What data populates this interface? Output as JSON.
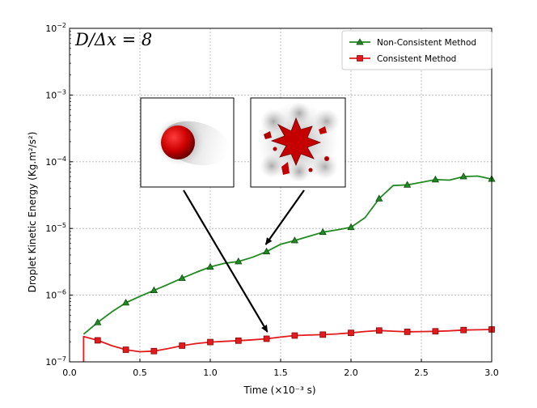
{
  "chart_data": {
    "type": "line",
    "annotation": "D/Δx = 8",
    "xlabel": "Time (×10⁻³ s)",
    "ylabel": "Droplet Kinetic Energy (Kg.m²/s²)",
    "xlim": [
      0.0,
      3.0
    ],
    "ylim": [
      1e-07,
      0.01
    ],
    "yscale": "log",
    "grid": true,
    "legend_position": "top-right",
    "x_ticks": [
      "0.0",
      "0.5",
      "1.0",
      "1.5",
      "2.0",
      "2.5",
      "3.0"
    ],
    "y_ticks": [
      {
        "base": "10",
        "exp": "−7",
        "value": 1e-07
      },
      {
        "base": "10",
        "exp": "−6",
        "value": 1e-06
      },
      {
        "base": "10",
        "exp": "−5",
        "value": 1e-05
      },
      {
        "base": "10",
        "exp": "−4",
        "value": 0.0001
      },
      {
        "base": "10",
        "exp": "−3",
        "value": 0.001
      },
      {
        "base": "10",
        "exp": "−2",
        "value": 0.01
      }
    ],
    "series": [
      {
        "name": "Non-Consistent Method",
        "color": "#1f8a1f",
        "marker": "triangle",
        "x": [
          0.1,
          0.2,
          0.3,
          0.4,
          0.5,
          0.6,
          0.7,
          0.8,
          0.9,
          1.0,
          1.1,
          1.2,
          1.3,
          1.4,
          1.5,
          1.6,
          1.7,
          1.8,
          1.9,
          2.0,
          2.1,
          2.2,
          2.3,
          2.4,
          2.5,
          2.6,
          2.7,
          2.8,
          2.9,
          3.0
        ],
        "y": [
          2.6e-07,
          3.9e-07,
          5.6e-07,
          7.7e-07,
          9.6e-07,
          1.18e-06,
          1.45e-06,
          1.8e-06,
          2.2e-06,
          2.65e-06,
          3e-06,
          3.2e-06,
          3.7e-06,
          4.5e-06,
          5.8e-06,
          6.6e-06,
          7.6e-06,
          8.8e-06,
          9.5e-06,
          1.04e-05,
          1.45e-05,
          2.8e-05,
          4.4e-05,
          4.5e-05,
          4.9e-05,
          5.4e-05,
          5.3e-05,
          6e-05,
          6.1e-05,
          5.5e-05
        ],
        "marker_x": [
          0.2,
          0.4,
          0.6,
          0.8,
          1.0,
          1.2,
          1.4,
          1.6,
          1.8,
          2.0,
          2.2,
          2.4,
          2.6,
          2.8,
          3.0
        ]
      },
      {
        "name": "Consistent Method",
        "color": "#e31a1c",
        "marker": "square",
        "x": [
          0.1,
          0.1,
          0.2,
          0.3,
          0.4,
          0.5,
          0.6,
          0.7,
          0.8,
          0.9,
          1.0,
          1.1,
          1.2,
          1.3,
          1.4,
          1.5,
          1.6,
          1.7,
          1.8,
          1.9,
          2.0,
          2.1,
          2.2,
          2.3,
          2.4,
          2.5,
          2.6,
          2.7,
          2.8,
          2.9,
          3.0
        ],
        "y": [
          1e-07,
          2.4e-07,
          2.1e-07,
          1.75e-07,
          1.52e-07,
          1.42e-07,
          1.45e-07,
          1.58e-07,
          1.75e-07,
          1.88e-07,
          1.98e-07,
          2.03e-07,
          2.08e-07,
          2.14e-07,
          2.22e-07,
          2.35e-07,
          2.48e-07,
          2.52e-07,
          2.56e-07,
          2.62e-07,
          2.72e-07,
          2.85e-07,
          2.95e-07,
          2.88e-07,
          2.82e-07,
          2.84e-07,
          2.87e-07,
          2.92e-07,
          3e-07,
          3.02e-07,
          3.06e-07
        ],
        "marker_x": [
          0.2,
          0.4,
          0.6,
          0.8,
          1.0,
          1.2,
          1.4,
          1.6,
          1.8,
          2.0,
          2.2,
          2.4,
          2.6,
          2.8,
          3.0
        ]
      }
    ],
    "insets": [
      {
        "name": "intact-droplet",
        "points_to": {
          "x": 1.4,
          "y": 2.25e-07
        }
      },
      {
        "name": "fragmented-droplet",
        "points_to": {
          "x": 1.4,
          "y": 4.6e-06
        }
      }
    ]
  }
}
